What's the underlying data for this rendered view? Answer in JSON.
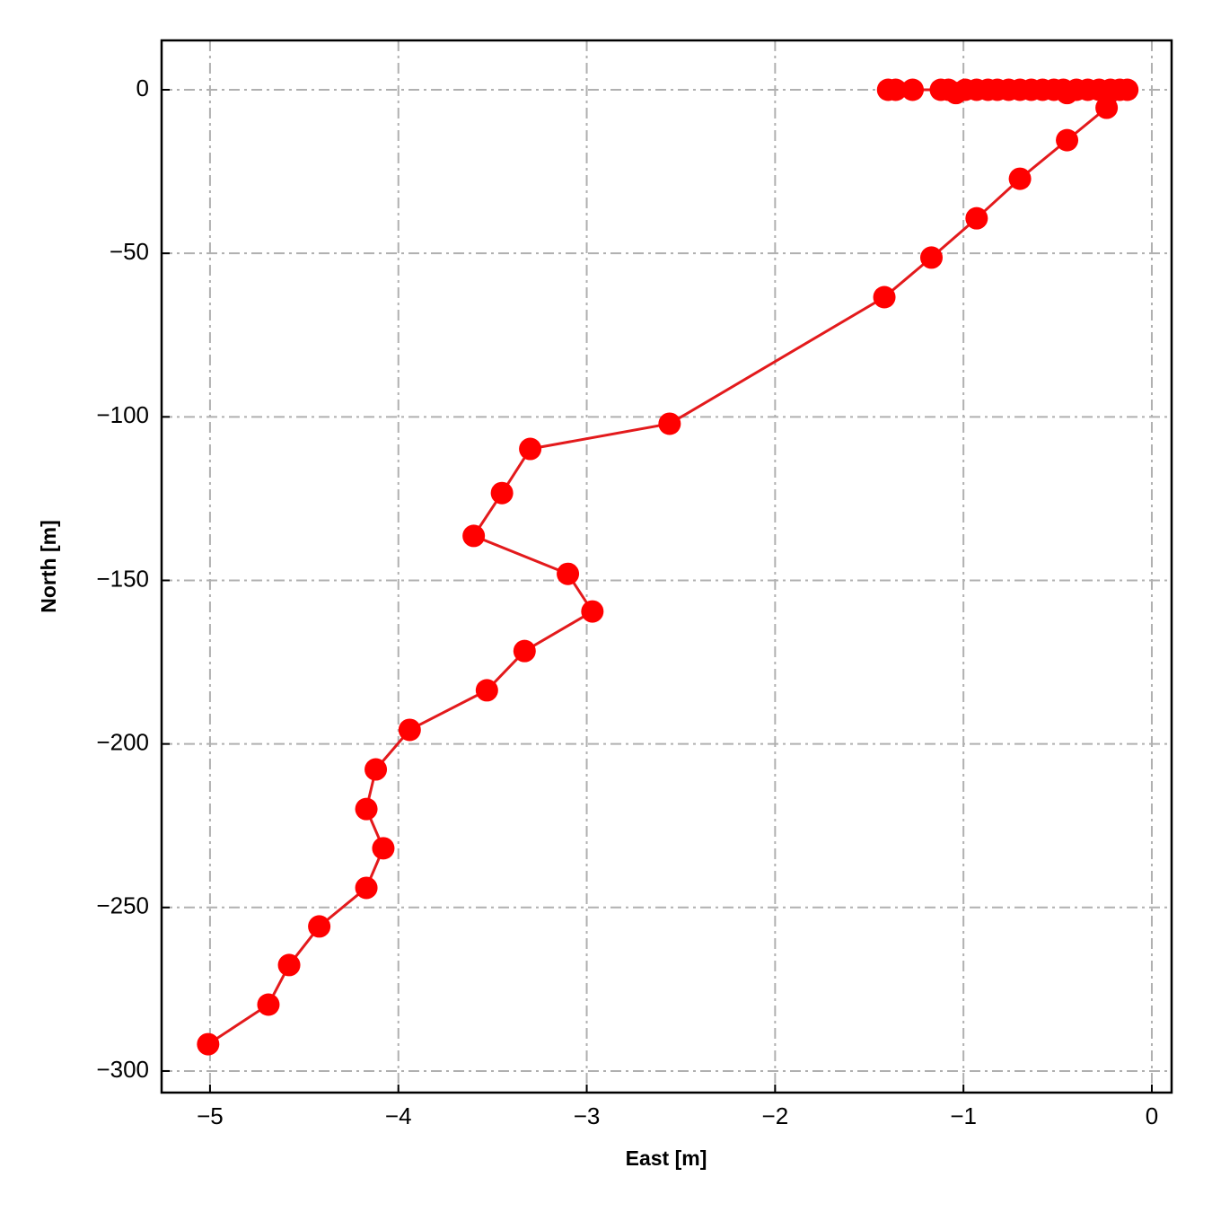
{
  "chart_data": {
    "type": "line",
    "xlabel": "East [m]",
    "ylabel": "North [m]",
    "color": "#ff0000",
    "line_color": "#e31a1c",
    "grid": true,
    "x": [
      -1.4,
      -1.36,
      -1.27,
      -1.12,
      -1.08,
      -1.04,
      -0.99,
      -0.93,
      -0.87,
      -0.82,
      -0.76,
      -0.7,
      -0.64,
      -0.58,
      -0.52,
      -0.47,
      -0.45,
      -0.4,
      -0.34,
      -0.28,
      -0.22,
      -0.17,
      -0.13,
      -0.24,
      -0.45,
      -0.7,
      -0.93,
      -1.17,
      -1.42,
      -2.56,
      -3.3,
      -3.45,
      -3.6,
      -3.1,
      -2.97,
      -3.33,
      -3.53,
      -3.94,
      -4.12,
      -4.17,
      -4.08,
      -4.17,
      -4.42,
      -4.58,
      -4.69,
      -5.01
    ],
    "values": [
      0,
      0,
      0,
      0,
      0,
      -1,
      0,
      0,
      0,
      0,
      0,
      0,
      0,
      0,
      0,
      0,
      -1,
      0,
      0,
      0,
      0,
      0,
      0,
      -5.5,
      -15.4,
      -27.2,
      -39.3,
      -51.3,
      -63.4,
      -102.1,
      -109.8,
      -123.3,
      -136.4,
      -148.0,
      -159.5,
      -171.6,
      -183.6,
      -195.7,
      -207.8,
      -219.9,
      -231.9,
      -244.0,
      -255.8,
      -267.6,
      -279.7,
      -291.8
    ],
    "xlim": [
      -5.257,
      0.105
    ],
    "ylim": [
      -306.6,
      15.1
    ],
    "xticks": [
      {
        "value": -5,
        "label": "−5"
      },
      {
        "value": -4,
        "label": "−4"
      },
      {
        "value": -3,
        "label": "−3"
      },
      {
        "value": -2,
        "label": "−2"
      },
      {
        "value": -1,
        "label": "−1"
      },
      0
    ],
    "yticks": [
      {
        "value": -300,
        "label": "−300"
      },
      {
        "value": -250,
        "label": "−250"
      },
      {
        "value": -200,
        "label": "−200"
      },
      {
        "value": -150,
        "label": "−150"
      },
      {
        "value": -100,
        "label": "−100"
      },
      {
        "value": -50,
        "label": "−50"
      },
      0
    ]
  }
}
